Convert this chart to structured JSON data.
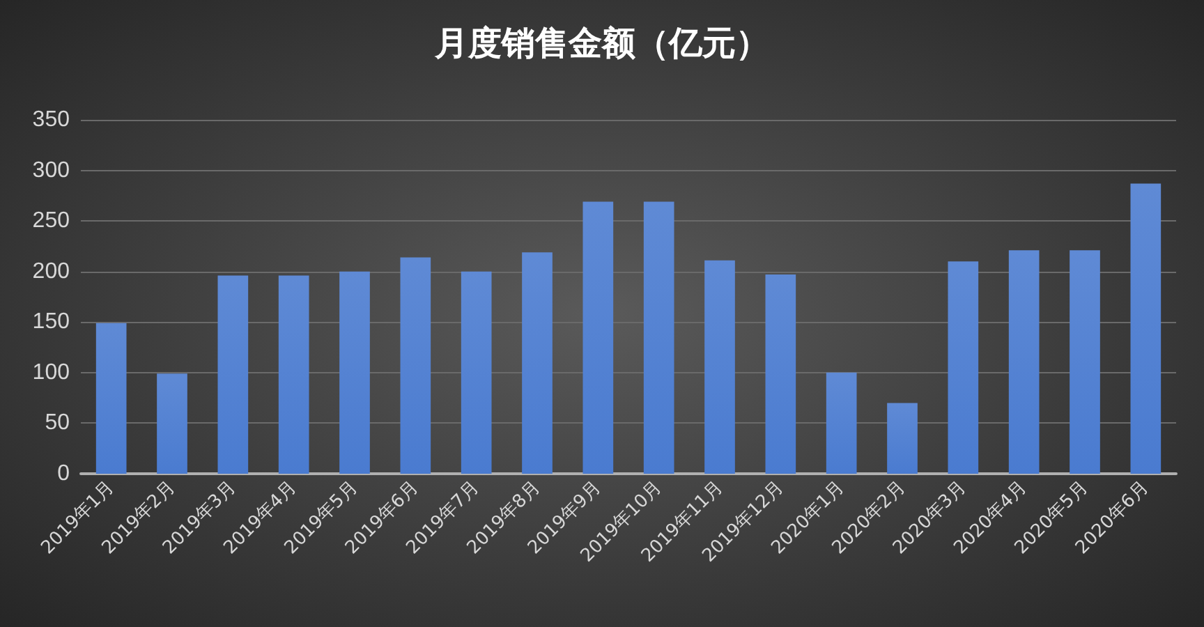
{
  "chart_data": {
    "type": "bar",
    "title": "月度销售金额（亿元）",
    "categories": [
      "2019年1月",
      "2019年2月",
      "2019年3月",
      "2019年4月",
      "2019年5月",
      "2019年6月",
      "2019年7月",
      "2019年8月",
      "2019年9月",
      "2019年10月",
      "2019年11月",
      "2019年12月",
      "2020年1月",
      "2020年2月",
      "2020年3月",
      "2020年4月",
      "2020年5月",
      "2020年6月"
    ],
    "values": [
      149,
      99,
      196,
      196,
      200,
      214,
      200,
      219,
      269,
      269,
      211,
      197,
      100,
      70,
      210,
      221,
      221,
      287
    ],
    "color": "#4a7bd0",
    "ylim": [
      0,
      350
    ],
    "yticks": [
      0,
      50,
      100,
      150,
      200,
      250,
      300,
      350
    ],
    "grid": "y"
  }
}
